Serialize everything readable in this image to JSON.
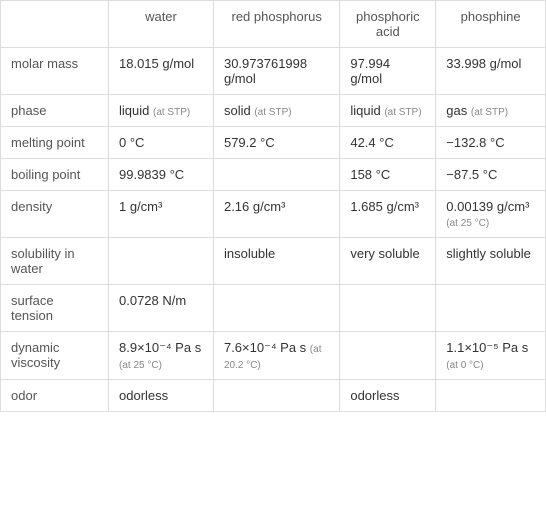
{
  "columns": [
    "water",
    "red phosphorus",
    "phosphoric acid",
    "phosphine"
  ],
  "rows": [
    {
      "label": "molar mass",
      "cells": [
        {
          "value": "18.015 g/mol"
        },
        {
          "value": "30.973761998 g/mol"
        },
        {
          "value": "97.994 g/mol"
        },
        {
          "value": "33.998 g/mol"
        }
      ]
    },
    {
      "label": "phase",
      "cells": [
        {
          "value": "liquid",
          "note": "(at STP)"
        },
        {
          "value": "solid",
          "note": "(at STP)"
        },
        {
          "value": "liquid",
          "note": "(at STP)"
        },
        {
          "value": "gas",
          "note": "(at STP)"
        }
      ]
    },
    {
      "label": "melting point",
      "cells": [
        {
          "value": "0 °C"
        },
        {
          "value": "579.2 °C"
        },
        {
          "value": "42.4 °C"
        },
        {
          "value": "−132.8 °C"
        }
      ]
    },
    {
      "label": "boiling point",
      "cells": [
        {
          "value": "99.9839 °C"
        },
        {
          "value": ""
        },
        {
          "value": "158 °C"
        },
        {
          "value": "−87.5 °C"
        }
      ]
    },
    {
      "label": "density",
      "cells": [
        {
          "value": "1 g/cm³"
        },
        {
          "value": "2.16 g/cm³"
        },
        {
          "value": "1.685 g/cm³"
        },
        {
          "value": "0.00139 g/cm³",
          "note": "(at 25 °C)"
        }
      ]
    },
    {
      "label": "solubility in water",
      "cells": [
        {
          "value": ""
        },
        {
          "value": "insoluble"
        },
        {
          "value": "very soluble"
        },
        {
          "value": "slightly soluble"
        }
      ]
    },
    {
      "label": "surface tension",
      "cells": [
        {
          "value": "0.0728 N/m"
        },
        {
          "value": ""
        },
        {
          "value": ""
        },
        {
          "value": ""
        }
      ]
    },
    {
      "label": "dynamic viscosity",
      "cells": [
        {
          "value": "8.9×10⁻⁴ Pa s",
          "note": "(at 25 °C)"
        },
        {
          "value": "7.6×10⁻⁴ Pa s",
          "note": "(at 20.2 °C)"
        },
        {
          "value": ""
        },
        {
          "value": "1.1×10⁻⁵ Pa s",
          "note": "(at 0 °C)"
        }
      ]
    },
    {
      "label": "odor",
      "cells": [
        {
          "value": "odorless"
        },
        {
          "value": ""
        },
        {
          "value": "odorless"
        },
        {
          "value": ""
        }
      ]
    }
  ]
}
